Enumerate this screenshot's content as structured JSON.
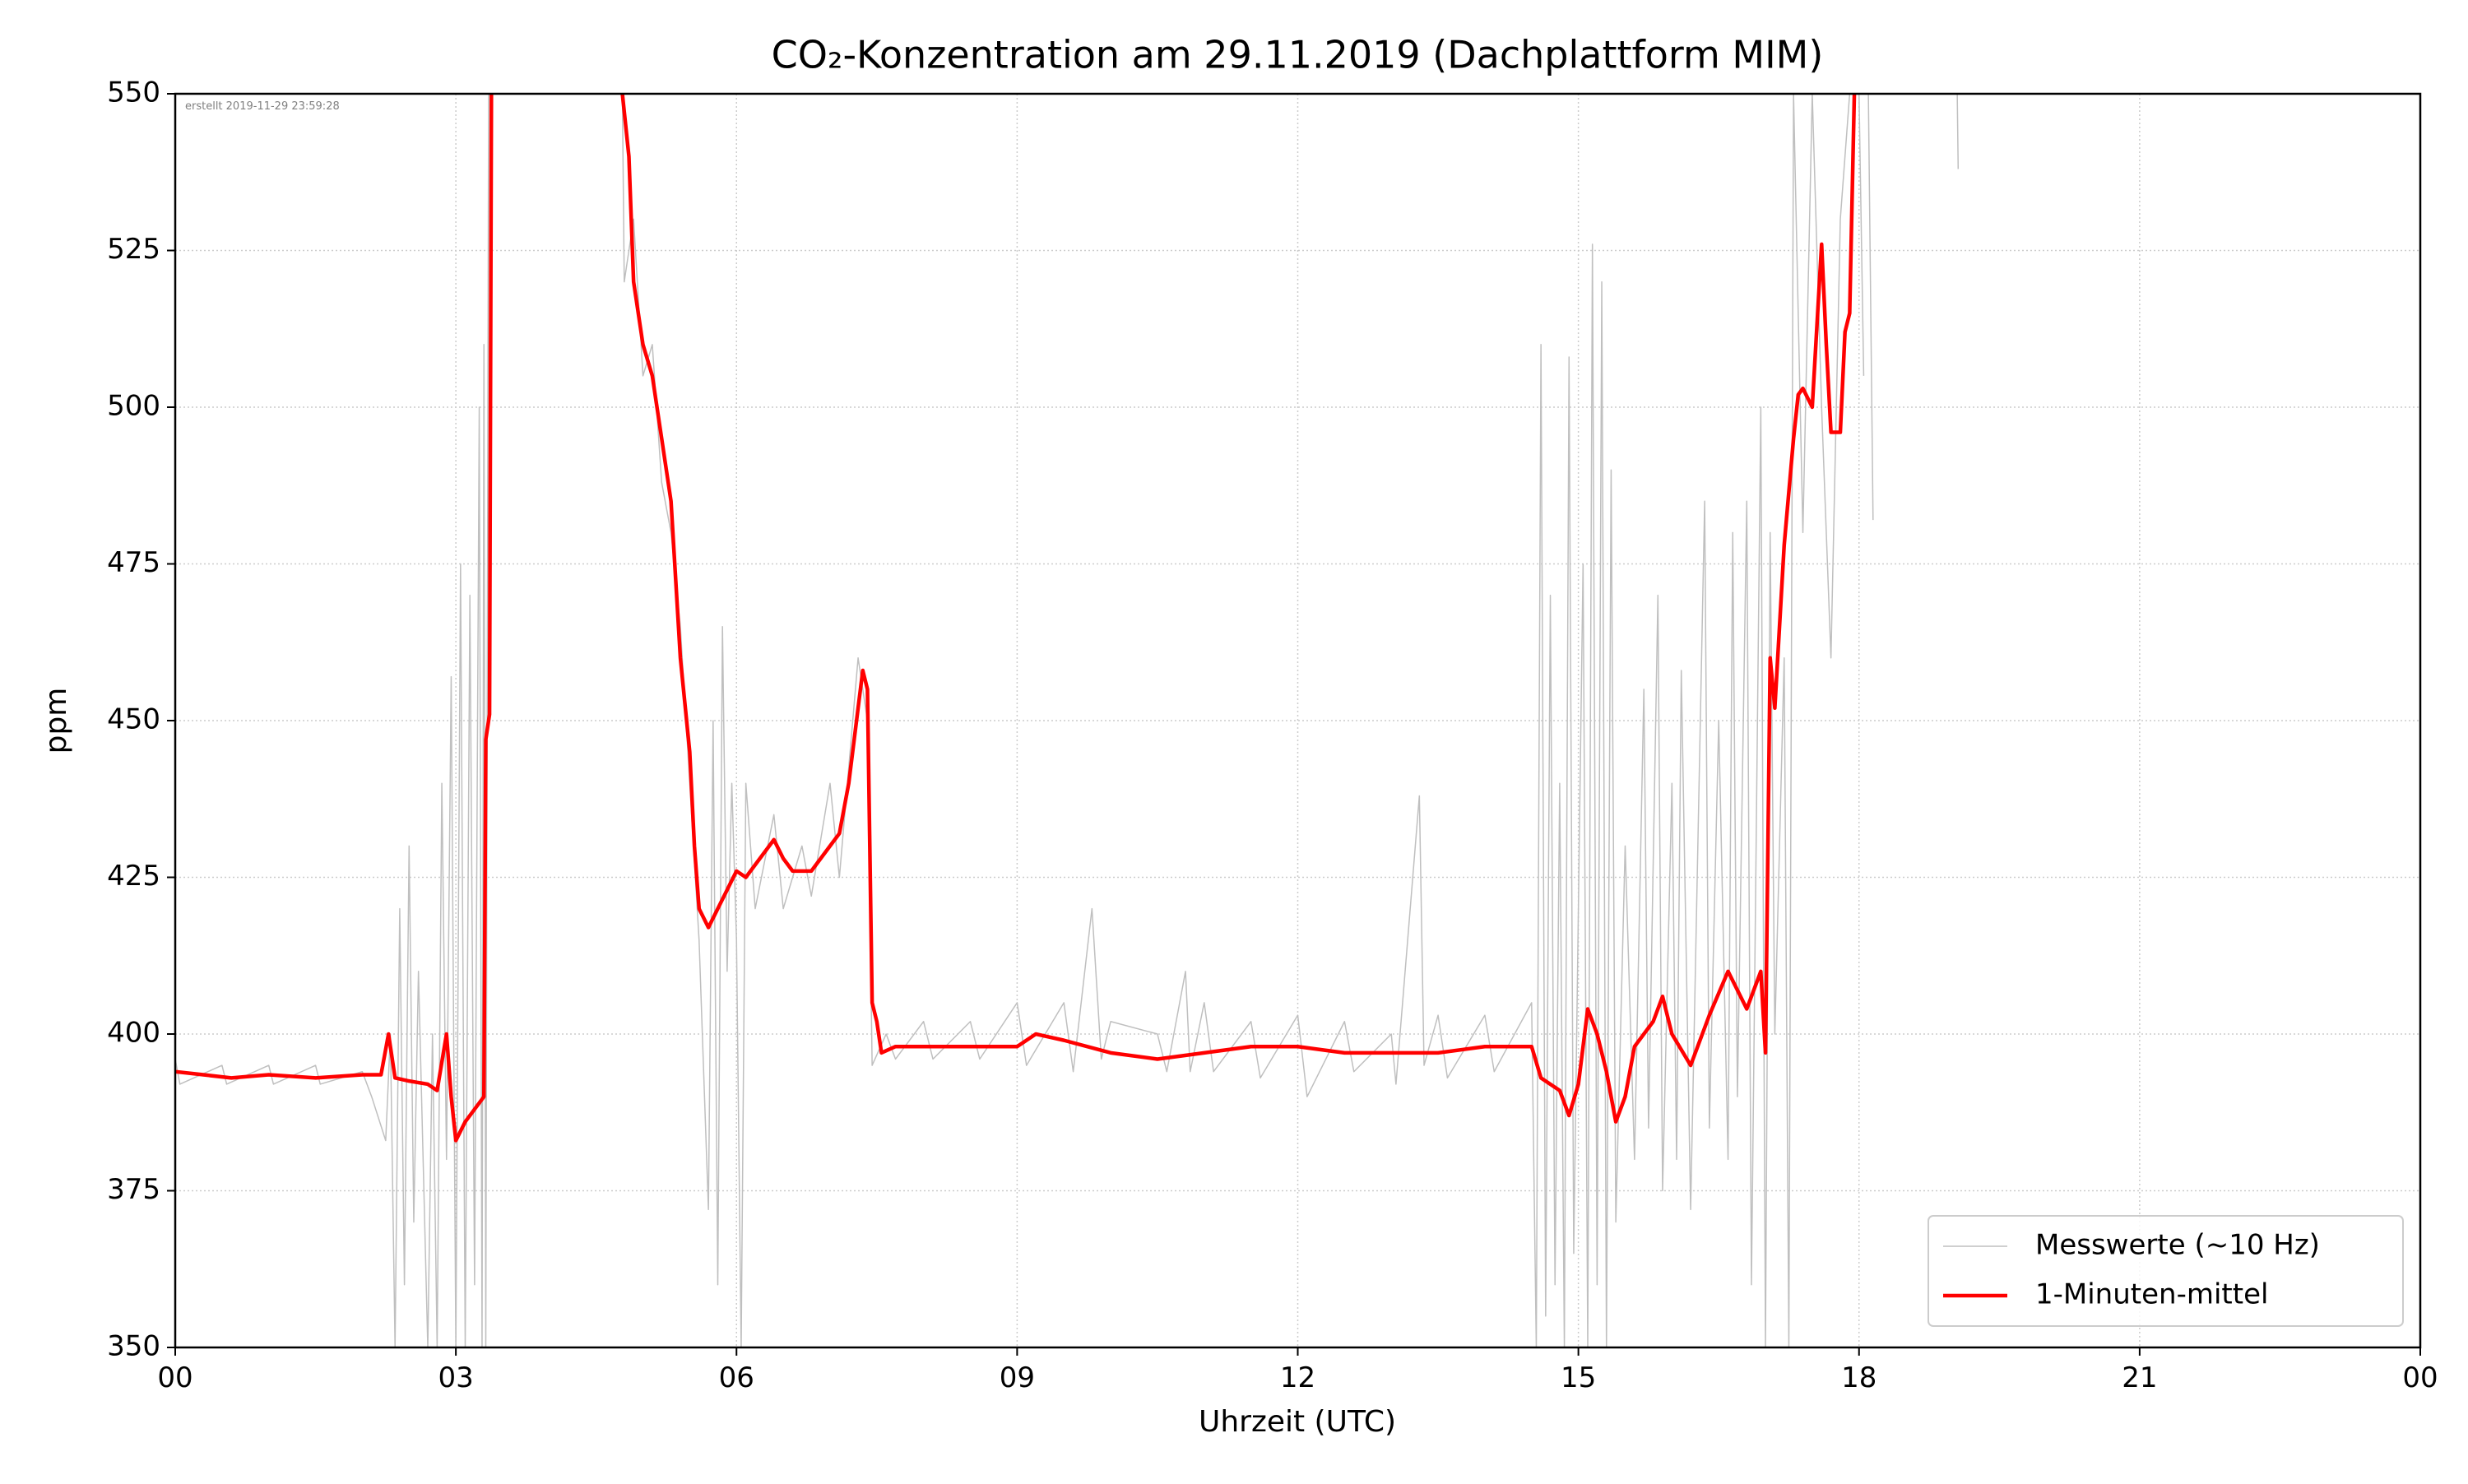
{
  "chart_data": {
    "type": "line",
    "title": "CO₂-Konzentration am 29.11.2019 (Dachplattform MIM)",
    "annotation": "erstellt 2019-11-29 23:59:28",
    "x_label": "Uhrzeit (UTC)",
    "y_label": "ppm",
    "xlim": [
      0,
      24
    ],
    "ylim": [
      350,
      550
    ],
    "xticks": [
      {
        "value": 0,
        "label": "00"
      },
      {
        "value": 3,
        "label": "03"
      },
      {
        "value": 6,
        "label": "06"
      },
      {
        "value": 9,
        "label": "09"
      },
      12,
      15,
      18,
      21,
      {
        "value": 24,
        "label": "00"
      }
    ],
    "yticks": [
      350,
      375,
      400,
      425,
      450,
      475,
      500,
      525,
      550
    ],
    "grid": true,
    "legend": "lower right",
    "series": [
      {
        "name": "Messwerte (~10 Hz)",
        "color": "#bfbfbf",
        "width": 1.5,
        "x": [
          0,
          0.05,
          0.5,
          0.55,
          1,
          1.05,
          1.5,
          1.55,
          2,
          2.1,
          2.25,
          2.3,
          2.35,
          2.4,
          2.45,
          2.5,
          2.55,
          2.6,
          2.7,
          2.75,
          2.8,
          2.85,
          2.9,
          2.95,
          3.0,
          3.05,
          3.1,
          3.15,
          3.2,
          3.25,
          3.28,
          3.3,
          3.32,
          3.35,
          4,
          4.78,
          4.8,
          4.9,
          5.0,
          5.1,
          5.2,
          5.3,
          5.4,
          5.5,
          5.6,
          5.7,
          5.75,
          5.8,
          5.85,
          5.9,
          5.95,
          6.0,
          6.05,
          6.1,
          6.2,
          6.4,
          6.5,
          6.7,
          6.8,
          7.0,
          7.1,
          7.3,
          7.4,
          7.45,
          7.6,
          7.7,
          8,
          8.1,
          8.5,
          8.6,
          9,
          9.1,
          9.5,
          9.6,
          9.8,
          9.9,
          10,
          10.5,
          10.6,
          10.8,
          10.85,
          11,
          11.1,
          11.5,
          11.6,
          12,
          12.1,
          12.5,
          12.6,
          13,
          13.05,
          13.3,
          13.35,
          13.5,
          13.6,
          14,
          14.1,
          14.5,
          14.55,
          14.6,
          14.65,
          14.7,
          14.75,
          14.8,
          14.85,
          14.9,
          14.95,
          15.05,
          15.1,
          15.15,
          15.2,
          15.25,
          15.3,
          15.35,
          15.4,
          15.5,
          15.6,
          15.7,
          15.75,
          15.85,
          15.9,
          16.0,
          16.05,
          16.1,
          16.2,
          16.35,
          16.4,
          16.5,
          16.6,
          16.65,
          16.7,
          16.8,
          16.85,
          16.95,
          17.0,
          17.05,
          17.1,
          17.2,
          17.25,
          17.3,
          17.4,
          17.5,
          17.6,
          17.7,
          17.8,
          17.9,
          17.95,
          18.0,
          18.05,
          18.08,
          18.1,
          18.15,
          18.5,
          19.05,
          19.06
        ],
        "values": [
          396,
          392,
          395,
          392,
          395,
          392,
          395,
          392,
          394,
          390,
          383,
          400,
          350,
          420,
          360,
          430,
          370,
          410,
          350,
          400,
          350,
          440,
          380,
          457,
          350,
          475,
          350,
          470,
          360,
          500,
          350,
          510,
          350,
          550,
          null,
          550,
          520,
          530,
          505,
          510,
          488,
          480,
          465,
          440,
          415,
          372,
          450,
          360,
          465,
          410,
          440,
          415,
          350,
          440,
          420,
          435,
          420,
          430,
          422,
          440,
          425,
          460,
          450,
          395,
          400,
          396,
          402,
          396,
          402,
          396,
          405,
          395,
          405,
          394,
          420,
          396,
          402,
          400,
          394,
          410,
          394,
          405,
          394,
          402,
          393,
          403,
          390,
          402,
          394,
          400,
          392,
          438,
          395,
          403,
          393,
          403,
          394,
          405,
          350,
          510,
          355,
          470,
          360,
          440,
          350,
          508,
          365,
          475,
          350,
          526,
          360,
          520,
          350,
          490,
          370,
          430,
          380,
          455,
          385,
          470,
          375,
          440,
          380,
          458,
          372,
          485,
          385,
          450,
          380,
          480,
          390,
          485,
          360,
          500,
          350,
          480,
          400,
          460,
          350,
          550,
          480,
          550,
          500,
          460,
          530,
          550,
          null,
          550,
          505,
          null,
          550,
          482,
          null,
          550,
          538
        ]
      },
      {
        "name": "1-Minuten-mittel",
        "color": "#ff0000",
        "width": 4.5,
        "x": [
          0,
          0.3,
          0.6,
          1,
          1.5,
          2,
          2.2,
          2.28,
          2.35,
          2.5,
          2.7,
          2.8,
          2.9,
          2.95,
          3.0,
          3.1,
          3.2,
          3.3,
          3.32,
          3.36,
          3.38,
          4,
          4.78,
          4.85,
          4.9,
          5.0,
          5.1,
          5.2,
          5.3,
          5.4,
          5.5,
          5.55,
          5.6,
          5.7,
          5.8,
          5.9,
          6.0,
          6.1,
          6.2,
          6.3,
          6.4,
          6.5,
          6.6,
          6.8,
          6.9,
          7.0,
          7.1,
          7.2,
          7.3,
          7.35,
          7.4,
          7.45,
          7.5,
          7.55,
          7.7,
          8,
          8.5,
          9,
          9.2,
          9.5,
          10,
          10.5,
          11,
          11.5,
          12,
          12.5,
          13,
          13.5,
          14,
          14.5,
          14.6,
          14.8,
          14.9,
          15.0,
          15.1,
          15.2,
          15.3,
          15.4,
          15.5,
          15.6,
          15.8,
          15.9,
          16.0,
          16.2,
          16.4,
          16.6,
          16.8,
          16.9,
          16.95,
          17.0,
          17.05,
          17.1,
          17.2,
          17.3,
          17.35,
          17.4,
          17.5,
          17.6,
          17.65,
          17.7,
          17.8,
          17.85,
          17.9,
          17.95
        ],
        "values": [
          394,
          393.5,
          393,
          393.5,
          393,
          393.5,
          393.5,
          400,
          393,
          392.5,
          392,
          391,
          400,
          390,
          383,
          386,
          388,
          390,
          447,
          451,
          550,
          null,
          550,
          540,
          520,
          510,
          505,
          495,
          485,
          460,
          445,
          430,
          420,
          417,
          420,
          423,
          426,
          425,
          427,
          429,
          431,
          428,
          426,
          426,
          428,
          430,
          432,
          440,
          452,
          458,
          455,
          405,
          402,
          397,
          398,
          398,
          398,
          398,
          400,
          399,
          397,
          396,
          397,
          398,
          398,
          397,
          397,
          397,
          398,
          398,
          393,
          391,
          387,
          392,
          404,
          400,
          394,
          386,
          390,
          398,
          402,
          406,
          400,
          395,
          403,
          410,
          404,
          408,
          410,
          397,
          460,
          452,
          478,
          495,
          502,
          503,
          500,
          526,
          510,
          496,
          496,
          512,
          515,
          550
        ]
      }
    ]
  }
}
